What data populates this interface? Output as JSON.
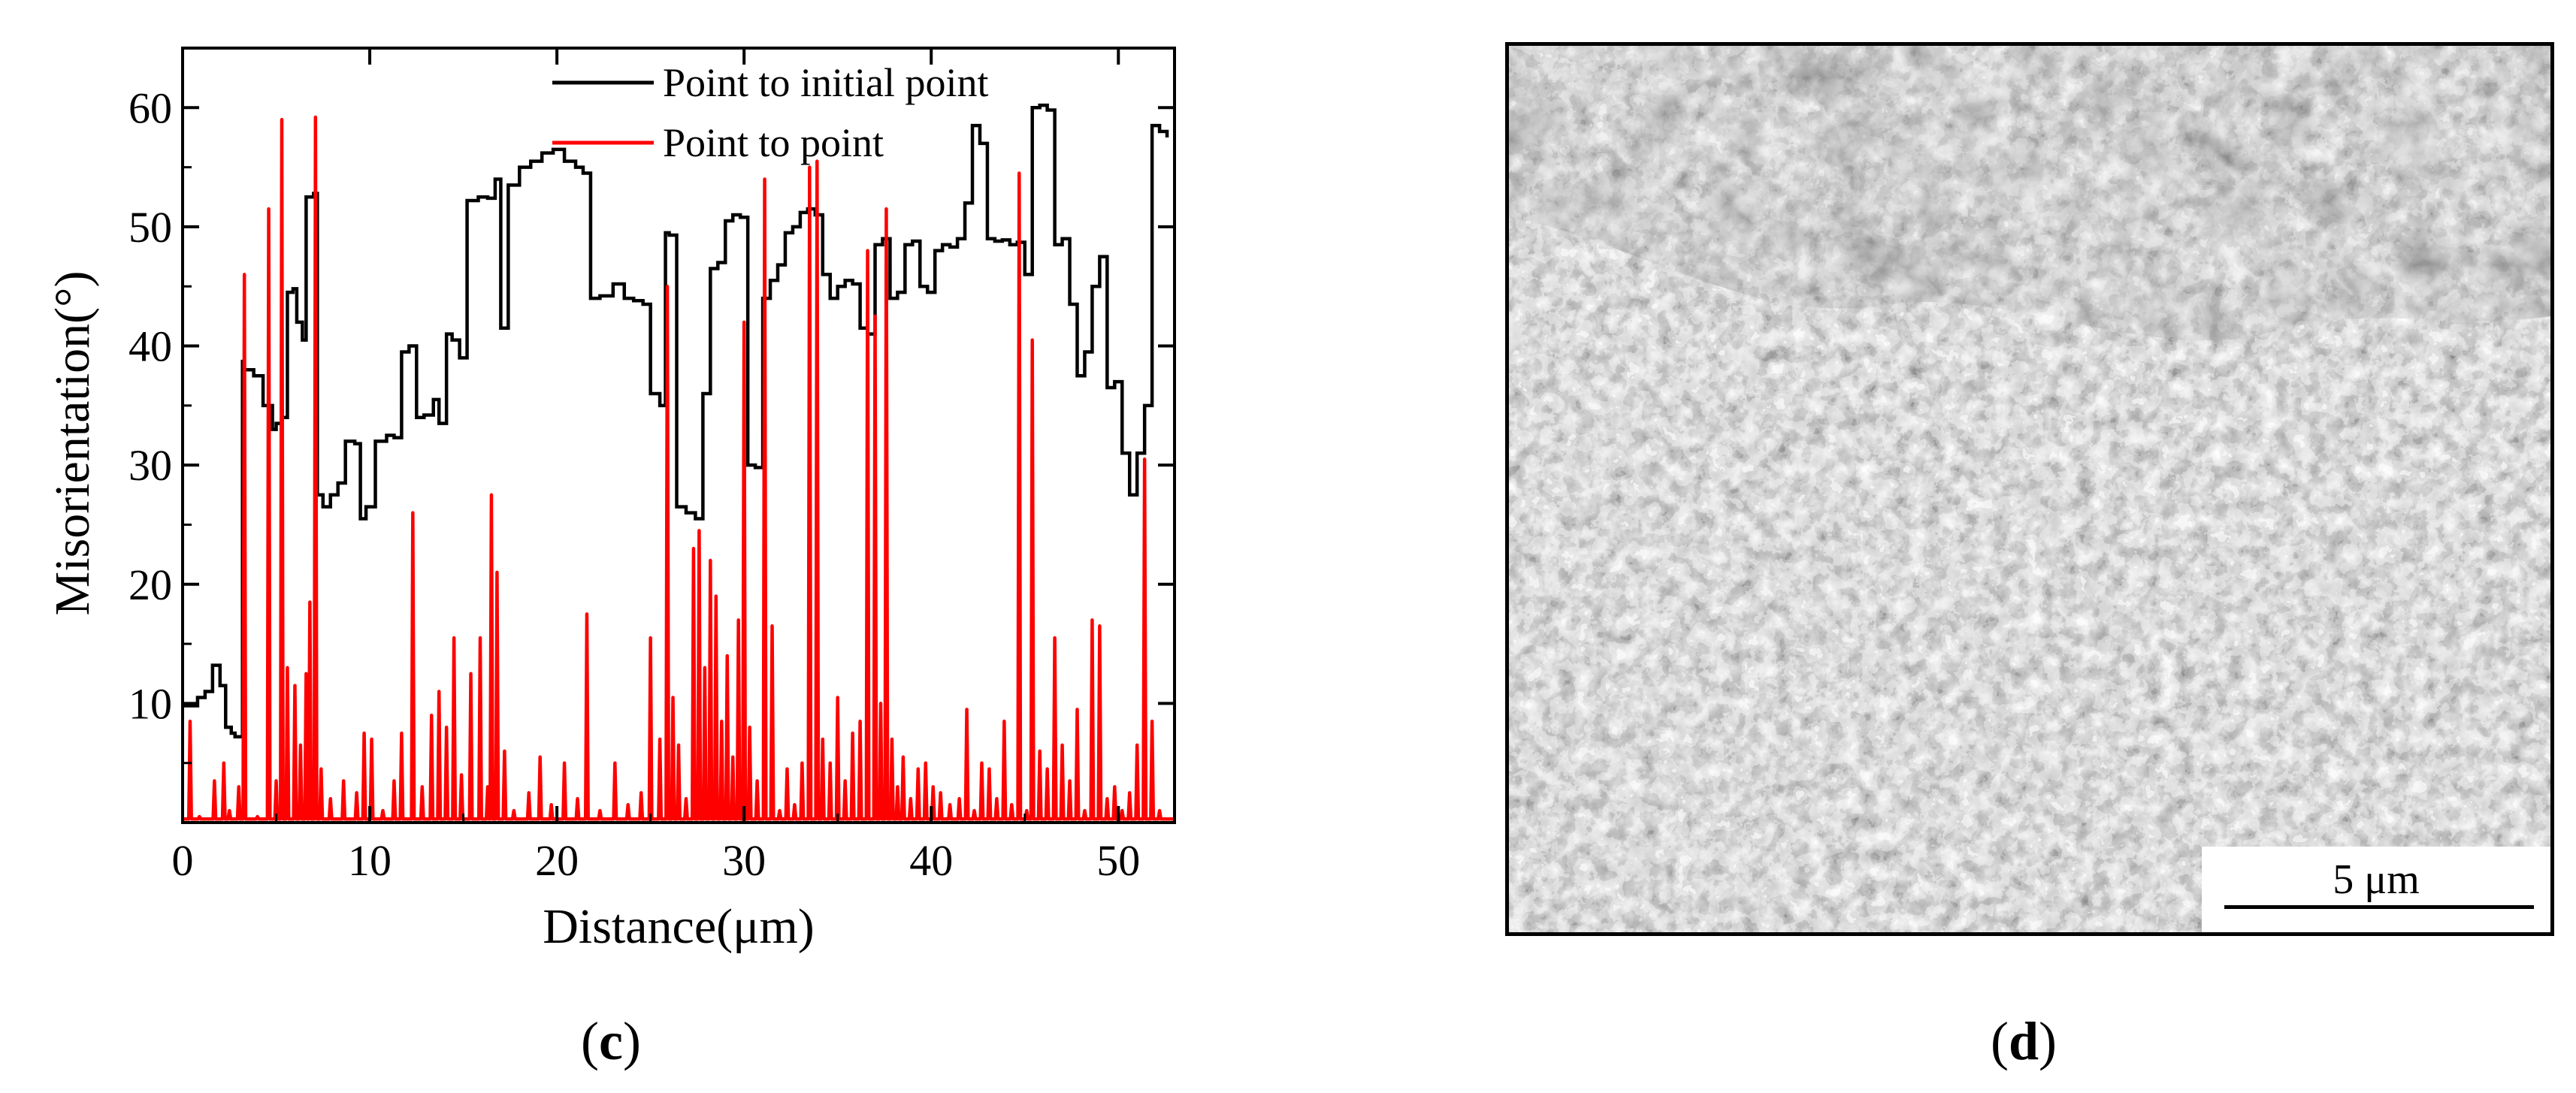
{
  "panels": {
    "c_label": "c",
    "d_label": "d",
    "sem_scale_label": "5 μm"
  },
  "colors": {
    "series_initial": "#000000",
    "series_point": "#ff0000"
  },
  "chart_data": {
    "type": "line",
    "title": "",
    "xlabel": "Distance(μm)",
    "ylabel": "Misorientation(°)",
    "xlim": [
      0,
      53
    ],
    "ylim": [
      0,
      65
    ],
    "xticks": [
      0,
      10,
      20,
      30,
      40,
      50
    ],
    "yticks": [
      10,
      20,
      30,
      40,
      50,
      60
    ],
    "grid": false,
    "legend_position": "top-right",
    "series": [
      {
        "name": "Point to initial point",
        "color": "#000000",
        "kind": "step",
        "x": [
          0.0,
          0.8,
          1.2,
          1.6,
          2.0,
          2.3,
          2.6,
          2.8,
          3.2,
          3.3,
          3.8,
          4.3,
          4.8,
          5.0,
          5.3,
          5.6,
          5.9,
          6.1,
          6.4,
          6.6,
          7.0,
          7.2,
          7.5,
          7.9,
          8.3,
          8.7,
          9.2,
          9.5,
          9.8,
          10.3,
          10.9,
          11.3,
          11.7,
          12.1,
          12.5,
          12.9,
          13.4,
          13.7,
          14.1,
          14.4,
          14.8,
          15.2,
          15.8,
          16.3,
          16.7,
          17.0,
          17.4,
          18.0,
          18.6,
          19.2,
          19.8,
          20.4,
          21.0,
          21.4,
          21.8,
          22.3,
          23.0,
          23.6,
          24.1,
          24.6,
          25.0,
          25.5,
          25.8,
          26.0,
          26.4,
          26.9,
          27.4,
          27.8,
          28.2,
          28.6,
          29.0,
          29.4,
          29.8,
          30.2,
          30.6,
          31.0,
          31.4,
          31.8,
          32.2,
          32.6,
          33.0,
          33.4,
          33.8,
          34.2,
          34.6,
          35.0,
          35.4,
          35.8,
          36.2,
          36.6,
          37.0,
          37.4,
          37.8,
          38.2,
          38.6,
          39.0,
          39.4,
          39.8,
          40.2,
          40.6,
          41.0,
          41.4,
          41.8,
          42.2,
          42.6,
          43.0,
          43.4,
          43.8,
          44.2,
          44.6,
          45.0,
          45.4,
          45.8,
          46.2,
          46.6,
          47.0,
          47.4,
          47.8,
          48.2,
          48.6,
          49.0,
          49.4,
          49.8,
          50.2,
          50.6,
          51.0,
          51.4,
          51.8,
          52.2,
          52.6
        ],
        "y": [
          9.8,
          10.5,
          11.0,
          13.2,
          11.5,
          8.0,
          7.5,
          7.2,
          38.7,
          38.0,
          37.5,
          35.0,
          33.0,
          33.5,
          34.0,
          44.5,
          44.8,
          42.0,
          40.5,
          52.5,
          52.8,
          27.5,
          26.5,
          27.5,
          28.5,
          32.0,
          31.8,
          25.5,
          26.5,
          32.0,
          32.5,
          32.3,
          39.5,
          40.0,
          34.0,
          34.2,
          35.5,
          33.5,
          41.0,
          40.5,
          39.0,
          52.2,
          52.5,
          52.4,
          54.0,
          41.5,
          53.5,
          55.0,
          55.5,
          56.2,
          56.5,
          55.5,
          55.0,
          54.5,
          44.0,
          44.2,
          45.2,
          44.0,
          43.8,
          43.5,
          36.0,
          35.0,
          49.5,
          49.3,
          26.5,
          26.0,
          25.5,
          36.0,
          46.5,
          47.0,
          50.5,
          51.0,
          50.8,
          30.0,
          29.8,
          44.0,
          45.5,
          46.8,
          49.5,
          50.0,
          51.2,
          51.5,
          51.0,
          46.0,
          44.0,
          45.0,
          45.5,
          45.2,
          41.5,
          41.0,
          48.5,
          49.0,
          44.0,
          44.5,
          48.5,
          48.8,
          45.0,
          44.5,
          48.0,
          48.5,
          48.3,
          49.0,
          52.0,
          58.5,
          57.0,
          49.0,
          48.8,
          48.9,
          48.5,
          48.7,
          46.0,
          60.0,
          60.2,
          59.8,
          48.5,
          49.0,
          43.5,
          37.5,
          39.5,
          45.0,
          47.5,
          36.5,
          37.0,
          31.0,
          27.5,
          31.0,
          35.0,
          58.5,
          58.0,
          57.5
        ]
      },
      {
        "name": "Point to point",
        "color": "#ff0000",
        "kind": "spikes",
        "x": [
          0.4,
          0.9,
          1.7,
          2.2,
          2.5,
          3.0,
          3.3,
          4.0,
          4.6,
          5.0,
          5.3,
          5.6,
          6.0,
          6.3,
          6.6,
          6.8,
          7.1,
          7.4,
          7.9,
          8.6,
          9.3,
          9.7,
          10.1,
          10.7,
          11.3,
          11.7,
          12.3,
          12.8,
          13.3,
          13.7,
          14.1,
          14.5,
          14.9,
          15.4,
          15.9,
          16.3,
          16.5,
          16.8,
          17.2,
          17.7,
          18.5,
          19.1,
          19.7,
          20.4,
          21.1,
          21.6,
          22.3,
          23.1,
          23.8,
          24.5,
          25.0,
          25.5,
          25.9,
          26.2,
          26.5,
          26.9,
          27.3,
          27.6,
          27.9,
          28.2,
          28.5,
          28.8,
          29.1,
          29.4,
          29.7,
          30.0,
          30.3,
          30.7,
          31.1,
          31.5,
          31.9,
          32.3,
          32.7,
          33.1,
          33.5,
          33.9,
          34.2,
          34.6,
          35.0,
          35.4,
          35.8,
          36.2,
          36.6,
          37.0,
          37.3,
          37.6,
          37.9,
          38.2,
          38.5,
          38.9,
          39.3,
          39.7,
          40.1,
          40.5,
          41.0,
          41.5,
          41.9,
          42.3,
          42.7,
          43.1,
          43.5,
          43.9,
          44.3,
          44.7,
          45.1,
          45.4,
          45.8,
          46.2,
          46.6,
          47.0,
          47.4,
          47.8,
          48.2,
          48.6,
          49.0,
          49.4,
          49.8,
          50.2,
          50.6,
          51.0,
          51.4,
          51.8,
          52.2
        ],
        "y": [
          8.5,
          0.5,
          3.5,
          5.0,
          1.0,
          3.0,
          46.0,
          0.5,
          51.5,
          3.5,
          59.0,
          13.0,
          11.5,
          6.5,
          12.5,
          18.5,
          59.2,
          4.5,
          2.0,
          3.5,
          2.5,
          7.5,
          7.0,
          1.0,
          3.5,
          7.5,
          26.0,
          3.0,
          9.0,
          11.0,
          8.0,
          15.5,
          4.0,
          12.5,
          15.5,
          3.0,
          27.5,
          21.0,
          6.0,
          1.0,
          2.5,
          5.5,
          1.5,
          5.0,
          2.0,
          17.5,
          1.0,
          5.0,
          1.5,
          2.5,
          15.5,
          7.0,
          45.0,
          10.5,
          6.5,
          2.0,
          23.0,
          24.5,
          13.0,
          22.0,
          19.0,
          8.5,
          14.0,
          5.5,
          17.0,
          42.0,
          8.0,
          3.5,
          54.0,
          16.5,
          1.0,
          4.5,
          1.5,
          5.0,
          55.0,
          55.5,
          7.0,
          5.0,
          10.5,
          3.5,
          7.5,
          8.5,
          48.0,
          42.5,
          10.0,
          51.5,
          7.0,
          3.0,
          5.5,
          2.0,
          4.5,
          5.0,
          3.0,
          2.5,
          1.5,
          2.0,
          9.5,
          1.0,
          5.0,
          4.5,
          2.0,
          8.5,
          1.5,
          54.5,
          1.0,
          40.5,
          6.0,
          4.5,
          15.5,
          6.5,
          3.5,
          9.5,
          1.0,
          17.0,
          16.5,
          2.0,
          3.0,
          1.0,
          2.5,
          6.5,
          30.5,
          8.5,
          1.0
        ]
      }
    ]
  }
}
